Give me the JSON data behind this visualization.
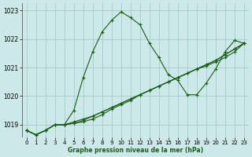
{
  "bg_color": "#cce8e8",
  "grid_color": "#aacfcf",
  "line_color": "#1a5c1a",
  "xlabel": "Graphe pression niveau de la mer (hPa)",
  "xlim": [
    -0.5,
    23.5
  ],
  "ylim": [
    1018.55,
    1023.25
  ],
  "yticks": [
    1019,
    1020,
    1021,
    1022,
    1023
  ],
  "xticks": [
    0,
    1,
    2,
    3,
    4,
    5,
    6,
    7,
    8,
    9,
    10,
    11,
    12,
    13,
    14,
    15,
    16,
    17,
    18,
    19,
    20,
    21,
    22,
    23
  ],
  "series": [
    [
      1018.8,
      1018.65,
      1018.8,
      1019.0,
      1019.0,
      1019.5,
      1020.65,
      1021.55,
      1022.25,
      1022.65,
      1022.95,
      1022.75,
      1022.5,
      1021.85,
      1021.35,
      1020.75,
      1020.55,
      1020.05,
      1020.05,
      1020.45,
      1020.95,
      1021.55,
      1021.95,
      1021.85
    ],
    [
      1018.8,
      1018.65,
      1018.8,
      1019.0,
      1019.0,
      1019.05,
      1019.1,
      1019.2,
      1019.35,
      1019.55,
      1019.7,
      1019.85,
      1020.05,
      1020.2,
      1020.35,
      1020.5,
      1020.65,
      1020.8,
      1020.95,
      1021.05,
      1021.2,
      1021.35,
      1021.55,
      1021.85
    ],
    [
      1018.8,
      1018.65,
      1018.8,
      1019.0,
      1019.0,
      1019.05,
      1019.15,
      1019.3,
      1019.45,
      1019.6,
      1019.75,
      1019.9,
      1020.05,
      1020.2,
      1020.35,
      1020.5,
      1020.65,
      1020.8,
      1020.95,
      1021.1,
      1021.25,
      1021.45,
      1021.65,
      1021.85
    ],
    [
      1018.8,
      1018.65,
      1018.8,
      1019.0,
      1019.0,
      1019.1,
      1019.2,
      1019.3,
      1019.45,
      1019.6,
      1019.75,
      1019.9,
      1020.05,
      1020.2,
      1020.35,
      1020.5,
      1020.65,
      1020.8,
      1020.95,
      1021.1,
      1021.25,
      1021.45,
      1021.65,
      1021.85
    ]
  ]
}
